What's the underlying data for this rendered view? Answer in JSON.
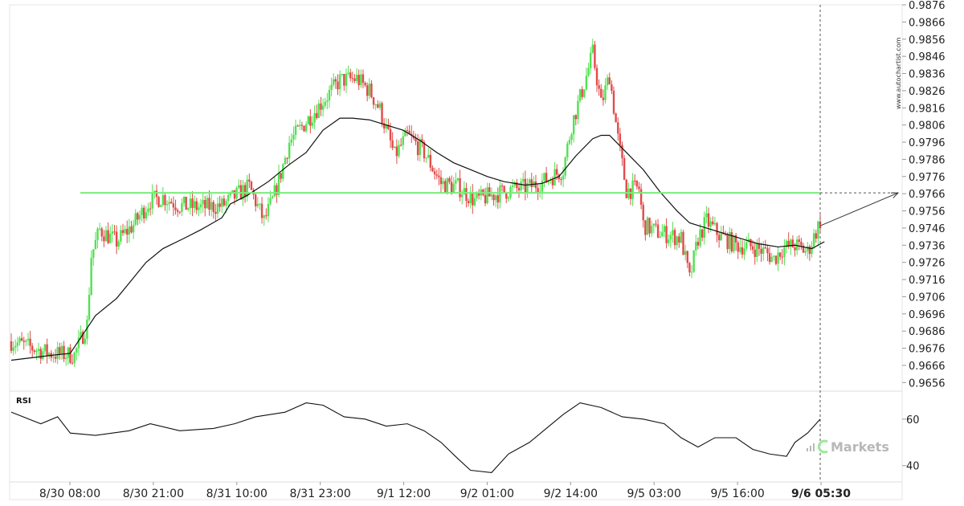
{
  "watermark": "www.autochartist.com",
  "brand": "Markets",
  "rsi_label": "RSI",
  "chart_data": {
    "type": "candlestick",
    "x_ticks": [
      "8/30 08:00",
      "8/30 21:00",
      "8/31 10:00",
      "8/31 23:00",
      "9/1 12:00",
      "9/2 01:00",
      "9/2 14:00",
      "9/5 03:00",
      "9/5 16:00",
      "9/6 05:30"
    ],
    "x_ticks_highlight": "9/6 05:30",
    "ylim": [
      0.9651,
      0.9876
    ],
    "y_ticks": [
      "0.9656",
      "0.9666",
      "0.9676",
      "0.9686",
      "0.9696",
      "0.9706",
      "0.9716",
      "0.9726",
      "0.9736",
      "0.9746",
      "0.9756",
      "0.9766",
      "0.9776",
      "0.9786",
      "0.9796",
      "0.9806",
      "0.9816",
      "0.9826",
      "0.9836",
      "0.9846",
      "0.9856",
      "0.9866",
      "0.9876"
    ],
    "level": 0.97665,
    "projection": [
      0.97475,
      0.97665
    ],
    "close_path": [
      [
        0,
        0.968
      ],
      [
        18,
        0.9673
      ],
      [
        30,
        0.9672
      ],
      [
        36,
        0.969
      ],
      [
        38,
        0.973
      ],
      [
        42,
        0.9745
      ],
      [
        50,
        0.9738
      ],
      [
        58,
        0.9748
      ],
      [
        66,
        0.9762
      ],
      [
        72,
        0.9764
      ],
      [
        80,
        0.9759
      ],
      [
        90,
        0.9758
      ],
      [
        100,
        0.9759
      ],
      [
        108,
        0.9766
      ],
      [
        113,
        0.977
      ],
      [
        120,
        0.975
      ],
      [
        124,
        0.9762
      ],
      [
        128,
        0.9778
      ],
      [
        132,
        0.9796
      ],
      [
        140,
        0.9808
      ],
      [
        148,
        0.982
      ],
      [
        156,
        0.9832
      ],
      [
        164,
        0.9833
      ],
      [
        170,
        0.9826
      ],
      [
        175,
        0.9815
      ],
      [
        182,
        0.9788
      ],
      [
        188,
        0.98
      ],
      [
        196,
        0.979
      ],
      [
        204,
        0.9772
      ],
      [
        212,
        0.977
      ],
      [
        220,
        0.9762
      ],
      [
        228,
        0.9765
      ],
      [
        236,
        0.9768
      ],
      [
        246,
        0.977
      ],
      [
        254,
        0.9774
      ],
      [
        262,
        0.978
      ],
      [
        266,
        0.9806
      ],
      [
        272,
        0.983
      ],
      [
        276,
        0.9848
      ],
      [
        280,
        0.9818
      ],
      [
        284,
        0.9835
      ],
      [
        288,
        0.9798
      ],
      [
        292,
        0.9768
      ],
      [
        298,
        0.9769
      ],
      [
        300,
        0.9748
      ],
      [
        306,
        0.9744
      ],
      [
        312,
        0.9742
      ],
      [
        318,
        0.974
      ],
      [
        322,
        0.9716
      ],
      [
        326,
        0.974
      ],
      [
        330,
        0.975
      ],
      [
        336,
        0.9742
      ],
      [
        344,
        0.9736
      ],
      [
        352,
        0.9735
      ],
      [
        358,
        0.9732
      ],
      [
        362,
        0.9728
      ],
      [
        366,
        0.9734
      ],
      [
        372,
        0.9736
      ],
      [
        378,
        0.9732
      ],
      [
        384,
        0.975
      ]
    ],
    "ma": [
      [
        0,
        0.9669
      ],
      [
        20,
        0.9672
      ],
      [
        28,
        0.9673
      ],
      [
        34,
        0.9684
      ],
      [
        40,
        0.9695
      ],
      [
        50,
        0.9705
      ],
      [
        56,
        0.9714
      ],
      [
        64,
        0.9726
      ],
      [
        72,
        0.9734
      ],
      [
        82,
        0.974
      ],
      [
        90,
        0.9745
      ],
      [
        100,
        0.9752
      ],
      [
        104,
        0.976
      ],
      [
        112,
        0.9765
      ],
      [
        122,
        0.9773
      ],
      [
        132,
        0.9783
      ],
      [
        140,
        0.979
      ],
      [
        148,
        0.9803
      ],
      [
        156,
        0.981
      ],
      [
        162,
        0.981
      ],
      [
        170,
        0.9809
      ],
      [
        178,
        0.9806
      ],
      [
        186,
        0.9803
      ],
      [
        194,
        0.9797
      ],
      [
        202,
        0.979
      ],
      [
        210,
        0.9784
      ],
      [
        218,
        0.978
      ],
      [
        226,
        0.9776
      ],
      [
        234,
        0.9773
      ],
      [
        244,
        0.9771
      ],
      [
        252,
        0.9772
      ],
      [
        260,
        0.9776
      ],
      [
        268,
        0.9788
      ],
      [
        276,
        0.9798
      ],
      [
        280,
        0.98
      ],
      [
        284,
        0.98
      ],
      [
        292,
        0.979
      ],
      [
        300,
        0.978
      ],
      [
        308,
        0.9767
      ],
      [
        316,
        0.9756
      ],
      [
        322,
        0.9749
      ],
      [
        330,
        0.9746
      ],
      [
        338,
        0.9743
      ],
      [
        346,
        0.974
      ],
      [
        354,
        0.9737
      ],
      [
        364,
        0.9735
      ],
      [
        372,
        0.9736
      ],
      [
        380,
        0.9734
      ],
      [
        386,
        0.9738
      ]
    ],
    "rsi": {
      "label": "RSI",
      "ylim": [
        33,
        71
      ],
      "y_ticks": [
        "60",
        "40"
      ],
      "values": [
        [
          0,
          63
        ],
        [
          14,
          58
        ],
        [
          22,
          61
        ],
        [
          28,
          54
        ],
        [
          40,
          53
        ],
        [
          56,
          55
        ],
        [
          66,
          58
        ],
        [
          80,
          55
        ],
        [
          96,
          56
        ],
        [
          106,
          58
        ],
        [
          116,
          61
        ],
        [
          130,
          63
        ],
        [
          140,
          67
        ],
        [
          148,
          66
        ],
        [
          158,
          61
        ],
        [
          168,
          60
        ],
        [
          178,
          57
        ],
        [
          188,
          58
        ],
        [
          196,
          55
        ],
        [
          204,
          50
        ],
        [
          212,
          43
        ],
        [
          218,
          38
        ],
        [
          228,
          37
        ],
        [
          236,
          45
        ],
        [
          246,
          50
        ],
        [
          254,
          56
        ],
        [
          262,
          62
        ],
        [
          270,
          67
        ],
        [
          280,
          65
        ],
        [
          290,
          61
        ],
        [
          300,
          60
        ],
        [
          310,
          58
        ],
        [
          318,
          52
        ],
        [
          326,
          48
        ],
        [
          334,
          52
        ],
        [
          344,
          52
        ],
        [
          352,
          47
        ],
        [
          360,
          45
        ],
        [
          368,
          44
        ],
        [
          372,
          50
        ],
        [
          378,
          54
        ],
        [
          384,
          60
        ]
      ]
    }
  }
}
